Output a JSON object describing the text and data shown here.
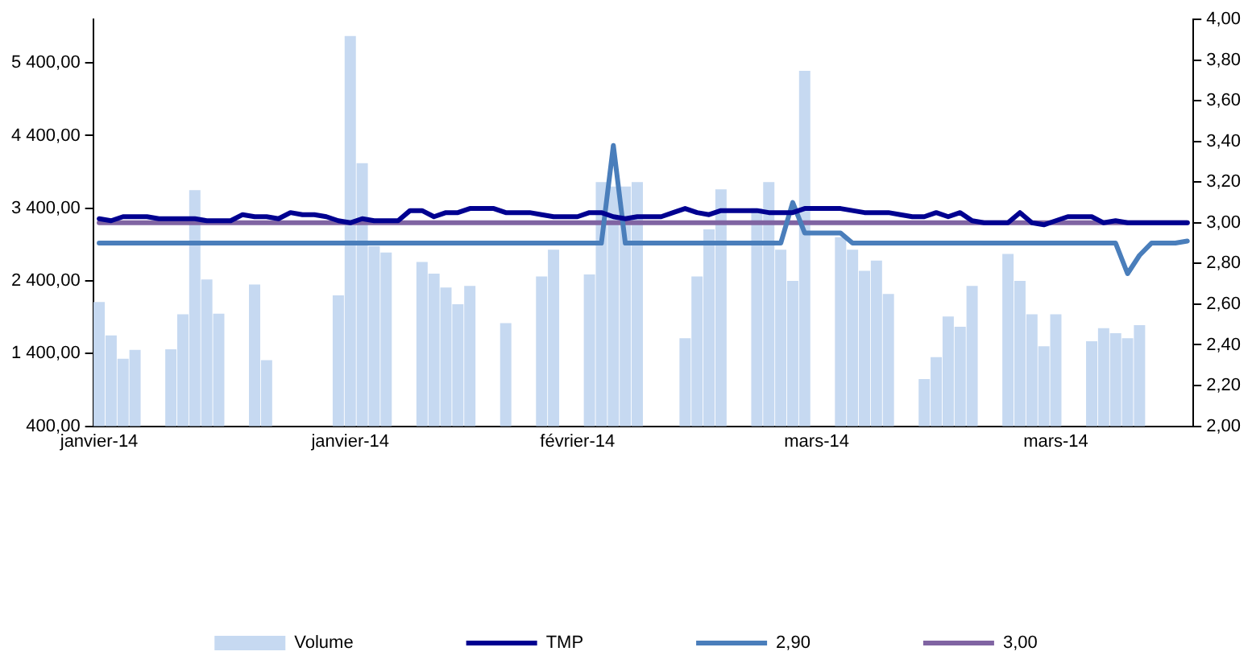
{
  "chart_data": {
    "type": "bar",
    "categories": [
      "janvier-14",
      null,
      null,
      null,
      null,
      null,
      null,
      null,
      null,
      null,
      null,
      null,
      null,
      null,
      null,
      null,
      null,
      null,
      null,
      null,
      null,
      "janvier-14",
      null,
      null,
      null,
      null,
      null,
      null,
      null,
      null,
      null,
      null,
      null,
      null,
      null,
      null,
      null,
      null,
      null,
      null,
      "février-14",
      null,
      null,
      null,
      null,
      null,
      null,
      null,
      null,
      null,
      null,
      null,
      null,
      null,
      null,
      null,
      null,
      null,
      null,
      null,
      "mars-14",
      null,
      null,
      null,
      null,
      null,
      null,
      null,
      null,
      null,
      null,
      null,
      null,
      null,
      null,
      null,
      null,
      null,
      null,
      null,
      "mars-14",
      null,
      null,
      null,
      null,
      null,
      null,
      null,
      null,
      null,
      null,
      null
    ],
    "series": [
      {
        "name": "Volume",
        "color": "#c6d9f1",
        "values": [
          2110,
          1650,
          1330,
          1450,
          null,
          null,
          1460,
          1940,
          3650,
          2420,
          1950,
          null,
          null,
          2350,
          1310,
          null,
          null,
          null,
          null,
          null,
          2200,
          5770,
          4020,
          2880,
          2790,
          null,
          null,
          2660,
          2500,
          2310,
          2080,
          2330,
          null,
          null,
          1820,
          null,
          null,
          2460,
          2830,
          null,
          null,
          2490,
          3760,
          3700,
          3700,
          3760,
          null,
          null,
          null,
          1610,
          2460,
          3110,
          3660,
          null,
          null,
          3400,
          3760,
          2830,
          2400,
          5290,
          null,
          null,
          3000,
          2830,
          2540,
          2680,
          2220,
          null,
          null,
          1050,
          1350,
          1910,
          1770,
          2330,
          null,
          null,
          2770,
          2400,
          1940,
          1500,
          1940,
          null,
          null,
          1570,
          1750,
          1680,
          1610,
          1790,
          null,
          null,
          null,
          null
        ]
      },
      {
        "name": "TMP",
        "type": "line",
        "axis": "y2",
        "color": "#000090",
        "values": [
          3.02,
          3.01,
          3.03,
          3.03,
          3.03,
          3.02,
          3.02,
          3.02,
          3.02,
          3.01,
          3.01,
          3.01,
          3.04,
          3.03,
          3.03,
          3.02,
          3.05,
          3.04,
          3.04,
          3.03,
          3.01,
          3.0,
          3.02,
          3.01,
          3.01,
          3.01,
          3.06,
          3.06,
          3.03,
          3.05,
          3.05,
          3.07,
          3.07,
          3.07,
          3.05,
          3.05,
          3.05,
          3.04,
          3.03,
          3.03,
          3.03,
          3.05,
          3.05,
          3.03,
          3.02,
          3.03,
          3.03,
          3.03,
          3.05,
          3.07,
          3.05,
          3.04,
          3.06,
          3.06,
          3.06,
          3.06,
          3.05,
          3.05,
          3.05,
          3.07,
          3.07,
          3.07,
          3.07,
          3.06,
          3.05,
          3.05,
          3.05,
          3.04,
          3.03,
          3.03,
          3.05,
          3.03,
          3.05,
          3.01,
          3.0,
          3.0,
          3.0,
          3.05,
          3.0,
          2.99,
          3.01,
          3.03,
          3.03,
          3.03,
          3.0,
          3.01,
          3.0,
          3.0,
          3.0,
          3.0,
          3.0,
          3.0
        ]
      },
      {
        "name": "2,90",
        "type": "line",
        "axis": "y2",
        "color": "#4a7ebb",
        "values": [
          2.9,
          2.9,
          2.9,
          2.9,
          2.9,
          2.9,
          2.9,
          2.9,
          2.9,
          2.9,
          2.9,
          2.9,
          2.9,
          2.9,
          2.9,
          2.9,
          2.9,
          2.9,
          2.9,
          2.9,
          2.9,
          2.9,
          2.9,
          2.9,
          2.9,
          2.9,
          2.9,
          2.9,
          2.9,
          2.9,
          2.9,
          2.9,
          2.9,
          2.9,
          2.9,
          2.9,
          2.9,
          2.9,
          2.9,
          2.9,
          2.9,
          2.9,
          2.9,
          3.38,
          2.9,
          2.9,
          2.9,
          2.9,
          2.9,
          2.9,
          2.9,
          2.9,
          2.9,
          2.9,
          2.9,
          2.9,
          2.9,
          2.9,
          3.1,
          2.95,
          2.95,
          2.95,
          2.95,
          2.9,
          2.9,
          2.9,
          2.9,
          2.9,
          2.9,
          2.9,
          2.9,
          2.9,
          2.9,
          2.9,
          2.9,
          2.9,
          2.9,
          2.9,
          2.9,
          2.9,
          2.9,
          2.9,
          2.9,
          2.9,
          2.9,
          2.9,
          2.75,
          2.84,
          2.9,
          2.9,
          2.9,
          2.91
        ]
      },
      {
        "name": "3,00",
        "type": "line",
        "axis": "y2",
        "color": "#8064a2",
        "values": [
          3.0,
          3.0,
          3.0,
          3.0,
          3.0,
          3.0,
          3.0,
          3.0,
          3.0,
          3.0,
          3.0,
          3.0,
          3.0,
          3.0,
          3.0,
          3.0,
          3.0,
          3.0,
          3.0,
          3.0,
          3.0,
          3.0,
          3.0,
          3.0,
          3.0,
          3.0,
          3.0,
          3.0,
          3.0,
          3.0,
          3.0,
          3.0,
          3.0,
          3.0,
          3.0,
          3.0,
          3.0,
          3.0,
          3.0,
          3.0,
          3.0,
          3.0,
          3.0,
          3.0,
          3.0,
          3.0,
          3.0,
          3.0,
          3.0,
          3.0,
          3.0,
          3.0,
          3.0,
          3.0,
          3.0,
          3.0,
          3.0,
          3.0,
          3.0,
          3.0,
          3.0,
          3.0,
          3.0,
          3.0,
          3.0,
          3.0,
          3.0,
          3.0,
          3.0,
          3.0,
          3.0,
          3.0,
          3.0,
          3.0,
          3.0,
          3.0,
          3.0,
          3.0,
          3.0,
          3.0,
          3.0,
          3.0,
          3.0,
          3.0,
          3.0,
          3.0,
          3.0,
          3.0,
          3.0,
          3.0,
          3.0,
          3.0
        ]
      }
    ],
    "ylim": [
      400,
      6000
    ],
    "yticks": [
      {
        "value": 400,
        "label": "400,00"
      },
      {
        "value": 1400,
        "label": "1 400,00"
      },
      {
        "value": 2400,
        "label": "2 400,00"
      },
      {
        "value": 3400,
        "label": "3 400,00"
      },
      {
        "value": 4400,
        "label": "4 400,00"
      },
      {
        "value": 5400,
        "label": "5 400,00"
      }
    ],
    "y2lim": [
      2,
      4
    ],
    "y2ticks": [
      {
        "value": 2,
        "label": "2,00"
      },
      {
        "value": 2.2,
        "label": "2,20"
      },
      {
        "value": 2.4,
        "label": "2,40"
      },
      {
        "value": 2.6,
        "label": "2,60"
      },
      {
        "value": 2.8,
        "label": "2,80"
      },
      {
        "value": 3,
        "label": "3,00"
      },
      {
        "value": 3.2,
        "label": "3,20"
      },
      {
        "value": 3.4,
        "label": "3,40"
      },
      {
        "value": 3.6,
        "label": "3,60"
      },
      {
        "value": 3.8,
        "label": "3,80"
      },
      {
        "value": 4,
        "label": "4,00"
      }
    ],
    "legend": "bottom",
    "marker": "none",
    "line_style": "solid"
  }
}
